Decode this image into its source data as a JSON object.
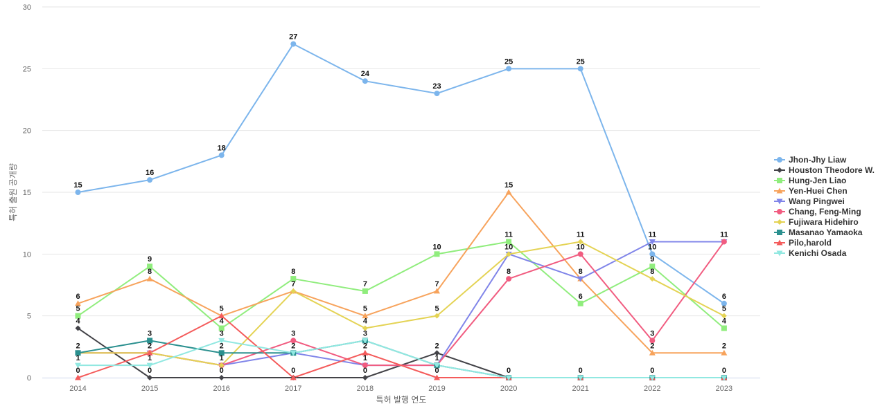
{
  "chart_data": {
    "type": "line",
    "title": "",
    "xlabel": "특허 발행 연도",
    "ylabel": "특허 출원 공개량",
    "ylim": [
      0,
      30
    ],
    "yticks": [
      0,
      5,
      10,
      15,
      20,
      25,
      30
    ],
    "grid": true,
    "legend_position": "right",
    "x": [
      "2014",
      "2015",
      "2016",
      "2017",
      "2018",
      "2019",
      "2020",
      "2021",
      "2022",
      "2023"
    ],
    "series": [
      {
        "name": "Jhon-Jhy Liaw",
        "color": "#7cb5ec",
        "marker": "circle",
        "values": [
          15,
          16,
          18,
          27,
          24,
          23,
          25,
          25,
          10,
          6
        ]
      },
      {
        "name": "Houston Theodore W.",
        "color": "#434348",
        "marker": "diamond",
        "values": [
          4,
          0,
          0,
          0,
          0,
          2,
          0,
          0,
          0,
          0
        ]
      },
      {
        "name": "Hung-Jen Liao",
        "color": "#90ed7d",
        "marker": "square",
        "values": [
          5,
          9,
          4,
          8,
          7,
          10,
          11,
          6,
          9,
          4
        ]
      },
      {
        "name": "Yen-Huei Chen",
        "color": "#f7a35c",
        "marker": "triangle",
        "values": [
          6,
          8,
          5,
          7,
          5,
          7,
          15,
          8,
          2,
          2
        ]
      },
      {
        "name": "Wang Pingwei",
        "color": "#8085e9",
        "marker": "triangle-down",
        "values": [
          2,
          2,
          1,
          2,
          1,
          1,
          10,
          8,
          11,
          11
        ]
      },
      {
        "name": "Chang, Feng-Ming",
        "color": "#f15c80",
        "marker": "circle",
        "values": [
          2,
          2,
          1,
          3,
          1,
          1,
          8,
          10,
          3,
          11
        ]
      },
      {
        "name": "Fujiwara Hidehiro",
        "color": "#e4d354",
        "marker": "diamond",
        "values": [
          2,
          2,
          1,
          7,
          4,
          5,
          10,
          11,
          8,
          5
        ]
      },
      {
        "name": "Masanao Yamaoka",
        "color": "#2b908f",
        "marker": "square",
        "values": [
          2,
          3,
          2,
          2,
          3,
          1,
          0,
          0,
          0,
          0
        ]
      },
      {
        "name": "Pilo,harold",
        "color": "#f45b5b",
        "marker": "triangle",
        "values": [
          0,
          2,
          5,
          0,
          2,
          0,
          0,
          0,
          0,
          0
        ]
      },
      {
        "name": "Kenichi Osada",
        "color": "#91e8e1",
        "marker": "triangle-down",
        "values": [
          1,
          1,
          3,
          2,
          3,
          1,
          0,
          0,
          0,
          0
        ]
      }
    ],
    "data_labels": [
      {
        "x": "2014",
        "value": 15
      },
      {
        "x": "2014",
        "value": 6
      },
      {
        "x": "2014",
        "value": 5
      },
      {
        "x": "2014",
        "value": 4
      },
      {
        "x": "2014",
        "value": 2
      },
      {
        "x": "2014",
        "value": 1
      },
      {
        "x": "2014",
        "value": 0
      },
      {
        "x": "2015",
        "value": 16
      },
      {
        "x": "2015",
        "value": 9
      },
      {
        "x": "2015",
        "value": 8
      },
      {
        "x": "2015",
        "value": 3
      },
      {
        "x": "2015",
        "value": 2
      },
      {
        "x": "2015",
        "value": 1
      },
      {
        "x": "2015",
        "value": 0
      },
      {
        "x": "2016",
        "value": 18
      },
      {
        "x": "2016",
        "value": 5
      },
      {
        "x": "2016",
        "value": 4
      },
      {
        "x": "2016",
        "value": 3
      },
      {
        "x": "2016",
        "value": 2
      },
      {
        "x": "2016",
        "value": 1
      },
      {
        "x": "2016",
        "value": 0
      },
      {
        "x": "2017",
        "value": 27
      },
      {
        "x": "2017",
        "value": 8
      },
      {
        "x": "2017",
        "value": 7
      },
      {
        "x": "2017",
        "value": 3
      },
      {
        "x": "2017",
        "value": 2
      },
      {
        "x": "2017",
        "value": 0
      },
      {
        "x": "2018",
        "value": 24
      },
      {
        "x": "2018",
        "value": 7
      },
      {
        "x": "2018",
        "value": 5
      },
      {
        "x": "2018",
        "value": 4
      },
      {
        "x": "2018",
        "value": 3
      },
      {
        "x": "2018",
        "value": 2
      },
      {
        "x": "2018",
        "value": 1
      },
      {
        "x": "2018",
        "value": 0
      },
      {
        "x": "2019",
        "value": 23
      },
      {
        "x": "2019",
        "value": 10
      },
      {
        "x": "2019",
        "value": 7
      },
      {
        "x": "2019",
        "value": 5
      },
      {
        "x": "2019",
        "value": 2
      },
      {
        "x": "2019",
        "value": 1
      },
      {
        "x": "2019",
        "value": 0
      },
      {
        "x": "2020",
        "value": 25
      },
      {
        "x": "2020",
        "value": 15
      },
      {
        "x": "2020",
        "value": 11
      },
      {
        "x": "2020",
        "value": 10
      },
      {
        "x": "2020",
        "value": 8
      },
      {
        "x": "2020",
        "value": 0
      },
      {
        "x": "2021",
        "value": 25
      },
      {
        "x": "2021",
        "value": 11
      },
      {
        "x": "2021",
        "value": 10
      },
      {
        "x": "2021",
        "value": 8
      },
      {
        "x": "2021",
        "value": 6
      },
      {
        "x": "2021",
        "value": 0
      },
      {
        "x": "2022",
        "value": 11
      },
      {
        "x": "2022",
        "value": 10
      },
      {
        "x": "2022",
        "value": 9
      },
      {
        "x": "2022",
        "value": 8
      },
      {
        "x": "2022",
        "value": 3
      },
      {
        "x": "2022",
        "value": 2
      },
      {
        "x": "2022",
        "value": 0
      },
      {
        "x": "2023",
        "value": 11
      },
      {
        "x": "2023",
        "value": 6
      },
      {
        "x": "2023",
        "value": 5
      },
      {
        "x": "2023",
        "value": 4
      },
      {
        "x": "2023",
        "value": 2
      },
      {
        "x": "2023",
        "value": 0
      }
    ]
  }
}
